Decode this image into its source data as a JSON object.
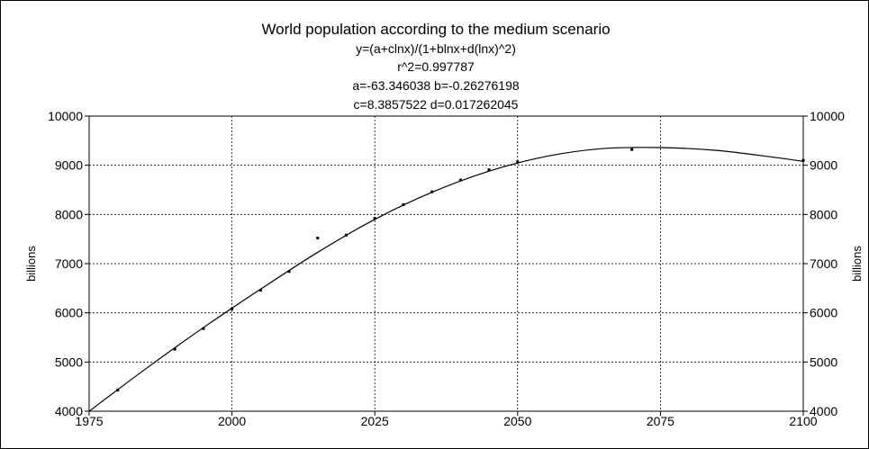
{
  "chart_data": {
    "type": "scatter",
    "title": "World population according to the medium scenario",
    "subtitle_lines": [
      "y=(a+clnx)/(1+blnx+d(lnx)^2)",
      "r^2=0.997787",
      "a=-63.346038 b=-0.26276198",
      "c=8.3857522 d=0.017262045"
    ],
    "xlabel": "",
    "ylabel": "billions",
    "ylabel_right": "billions",
    "xlim": [
      1975,
      2100
    ],
    "ylim": [
      4000,
      10000
    ],
    "x_ticks": [
      "1975",
      "2000",
      "2025",
      "2050",
      "2075",
      "2100"
    ],
    "y_ticks": [
      "4000",
      "5000",
      "6000",
      "7000",
      "8000",
      "9000",
      "10000"
    ],
    "grid": true,
    "series": [
      {
        "kind": "points",
        "x": [
          1980,
          1990,
          1995,
          2000,
          2005,
          2010,
          2015,
          2020,
          2025,
          2030,
          2035,
          2040,
          2045,
          2050,
          2070,
          2100
        ],
        "y": [
          4430,
          5260,
          5680,
          6080,
          6460,
          6840,
          7520,
          7580,
          7920,
          8200,
          8460,
          8700,
          8910,
          9070,
          9320,
          9100
        ]
      },
      {
        "kind": "fit-curve",
        "x": [
          1975,
          1985,
          1995,
          2005,
          2015,
          2025,
          2035,
          2045,
          2055,
          2065,
          2075,
          2085,
          2095,
          2100
        ],
        "y": [
          4000,
          4870,
          5700,
          6480,
          7230,
          7900,
          8450,
          8880,
          9180,
          9340,
          9360,
          9300,
          9160,
          9080
        ]
      }
    ]
  }
}
